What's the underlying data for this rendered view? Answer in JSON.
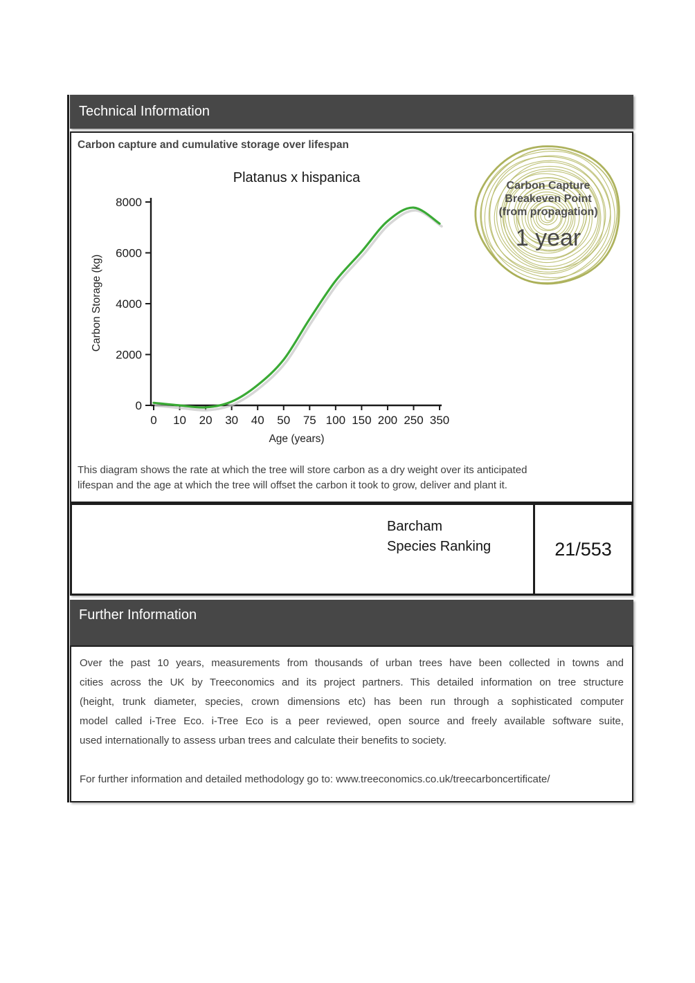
{
  "colors": {
    "bar_bg": "#474747",
    "bar_text": "#ffffff",
    "border": "#1e1e1e",
    "body_text": "#3e3e3e",
    "curve_green": "#3aaa35",
    "curve_shadow": "#c9c9c9",
    "badge_ring": "#b9bd6e",
    "badge_ring_outer": "#a9ae54"
  },
  "sections": {
    "technical": {
      "title": "Technical Information",
      "subtitle": "Carbon capture and cumulative storage over lifespan",
      "description_lines": [
        "This diagram shows the rate at which the tree will store carbon as a dry weight over its anticipated",
        "lifespan and the age at which the tree will offset the carbon it took to grow, deliver and plant it."
      ]
    },
    "ranking": {
      "label_line1": "Barcham",
      "label_line2": "Species Ranking",
      "value": "21/553"
    },
    "further": {
      "title": "Further Information",
      "paragraph_lines": [
        "Over the past 10 years, measurements from thousands of urban trees have been collected in towns and",
        "cities across the UK by Treeconomics and its project partners. This detailed information on tree structure",
        "(height, trunk diameter, species, crown dimensions etc) has been run through a sophisticated computer",
        "model called i-Tree Eco. i-Tree Eco is a peer reviewed, open source and freely available software suite,",
        "used internationally to assess urban trees and calculate their benefits to society."
      ],
      "link_line": "For further information and detailed methodology go to: www.treeconomics.co.uk/treecarboncertificate/"
    }
  },
  "badge": {
    "line1": "Carbon Capture",
    "line2": "Breakeven Point",
    "line3": "(from propagation)",
    "value": "1 year",
    "ring_color": "#b9bd6e",
    "outer_ring_color": "#a9ae54",
    "text_color": "#4d4d4d"
  },
  "chart_data": {
    "type": "line",
    "title": "Platanus x hispanica",
    "xlabel": "Age (years)",
    "ylabel": "Carbon Storage (kg)",
    "categories": [
      0,
      10,
      20,
      30,
      40,
      50,
      75,
      100,
      150,
      200,
      250,
      350
    ],
    "x_tick_labels": [
      "0",
      "10",
      "20",
      "30",
      "40",
      "50",
      "75",
      "100",
      "150",
      "200",
      "250",
      "350"
    ],
    "values": [
      100,
      0,
      -80,
      150,
      800,
      1800,
      3400,
      4900,
      6050,
      7250,
      7780,
      7150
    ],
    "ylim": [
      0,
      8000
    ],
    "yticks": [
      0,
      2000,
      4000,
      6000,
      8000
    ],
    "grid": false,
    "legend": null,
    "axis_note": "age axis is non-linear: ticks equally spaced",
    "line_color": "#3aaa35",
    "shadow_color": "#c9c9c9"
  }
}
